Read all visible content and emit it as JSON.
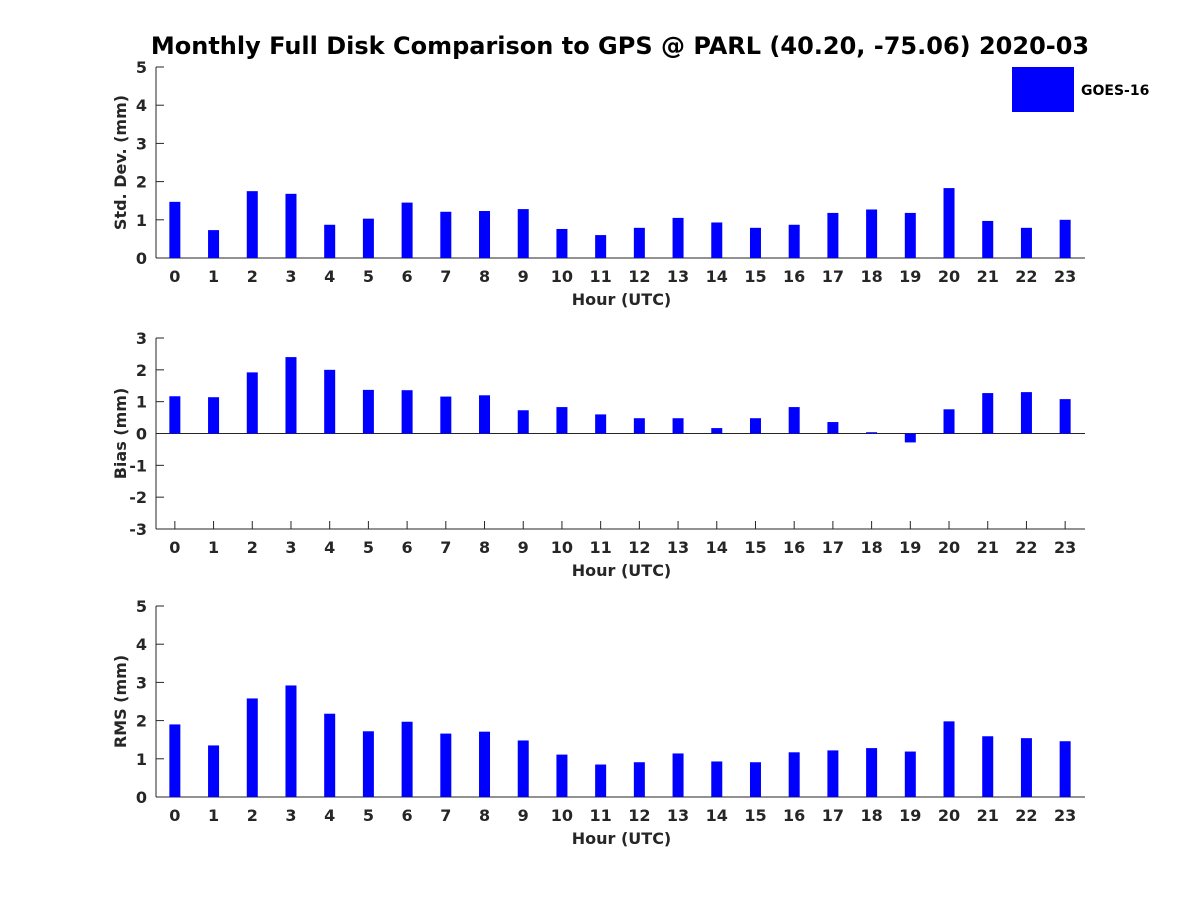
{
  "title": "Monthly Full Disk Comparison to GPS @ PARL (40.20, -75.06) 2020-03",
  "legend": {
    "label": "GOES-16",
    "color": "#0000ff",
    "placement": "top-right"
  },
  "chart_data": [
    {
      "type": "bar",
      "categories": [
        "0",
        "1",
        "2",
        "3",
        "4",
        "5",
        "6",
        "7",
        "8",
        "9",
        "10",
        "11",
        "12",
        "13",
        "14",
        "15",
        "16",
        "17",
        "18",
        "19",
        "20",
        "21",
        "22",
        "23"
      ],
      "series": [
        {
          "name": "GOES-16",
          "values": [
            1.47,
            0.73,
            1.75,
            1.68,
            0.87,
            1.03,
            1.45,
            1.21,
            1.23,
            1.28,
            0.76,
            0.6,
            0.79,
            1.05,
            0.93,
            0.79,
            0.87,
            1.18,
            1.27,
            1.18,
            1.83,
            0.97,
            0.79,
            1.0
          ]
        }
      ],
      "xlabel": "Hour (UTC)",
      "ylabel": "Std. Dev. (mm)",
      "ylim": [
        0,
        5
      ],
      "yticks": [
        "0",
        "1",
        "2",
        "3",
        "4",
        "5"
      ],
      "grid": false
    },
    {
      "type": "bar",
      "categories": [
        "0",
        "1",
        "2",
        "3",
        "4",
        "5",
        "6",
        "7",
        "8",
        "9",
        "10",
        "11",
        "12",
        "13",
        "14",
        "15",
        "16",
        "17",
        "18",
        "19",
        "20",
        "21",
        "22",
        "23"
      ],
      "series": [
        {
          "name": "GOES-16",
          "values": [
            1.17,
            1.14,
            1.92,
            2.4,
            2.0,
            1.37,
            1.36,
            1.16,
            1.2,
            0.73,
            0.83,
            0.6,
            0.48,
            0.48,
            0.17,
            0.48,
            0.83,
            0.36,
            0.04,
            -0.28,
            0.76,
            1.27,
            1.3,
            1.08
          ]
        }
      ],
      "xlabel": "Hour (UTC)",
      "ylabel": "Bias (mm)",
      "ylim": [
        -3,
        3
      ],
      "yticks": [
        "-3",
        "-2",
        "-1",
        "0",
        "1",
        "2",
        "3"
      ],
      "zero_line": true,
      "grid": false
    },
    {
      "type": "bar",
      "categories": [
        "0",
        "1",
        "2",
        "3",
        "4",
        "5",
        "6",
        "7",
        "8",
        "9",
        "10",
        "11",
        "12",
        "13",
        "14",
        "15",
        "16",
        "17",
        "18",
        "19",
        "20",
        "21",
        "22",
        "23"
      ],
      "series": [
        {
          "name": "GOES-16",
          "values": [
            1.9,
            1.35,
            2.58,
            2.92,
            2.18,
            1.72,
            1.97,
            1.66,
            1.71,
            1.48,
            1.11,
            0.85,
            0.91,
            1.14,
            0.93,
            0.91,
            1.17,
            1.22,
            1.28,
            1.19,
            1.98,
            1.59,
            1.54,
            1.46
          ]
        }
      ],
      "xlabel": "Hour (UTC)",
      "ylabel": "RMS (mm)",
      "ylim": [
        0,
        5
      ],
      "yticks": [
        "0",
        "1",
        "2",
        "3",
        "4",
        "5"
      ],
      "grid": false
    }
  ]
}
